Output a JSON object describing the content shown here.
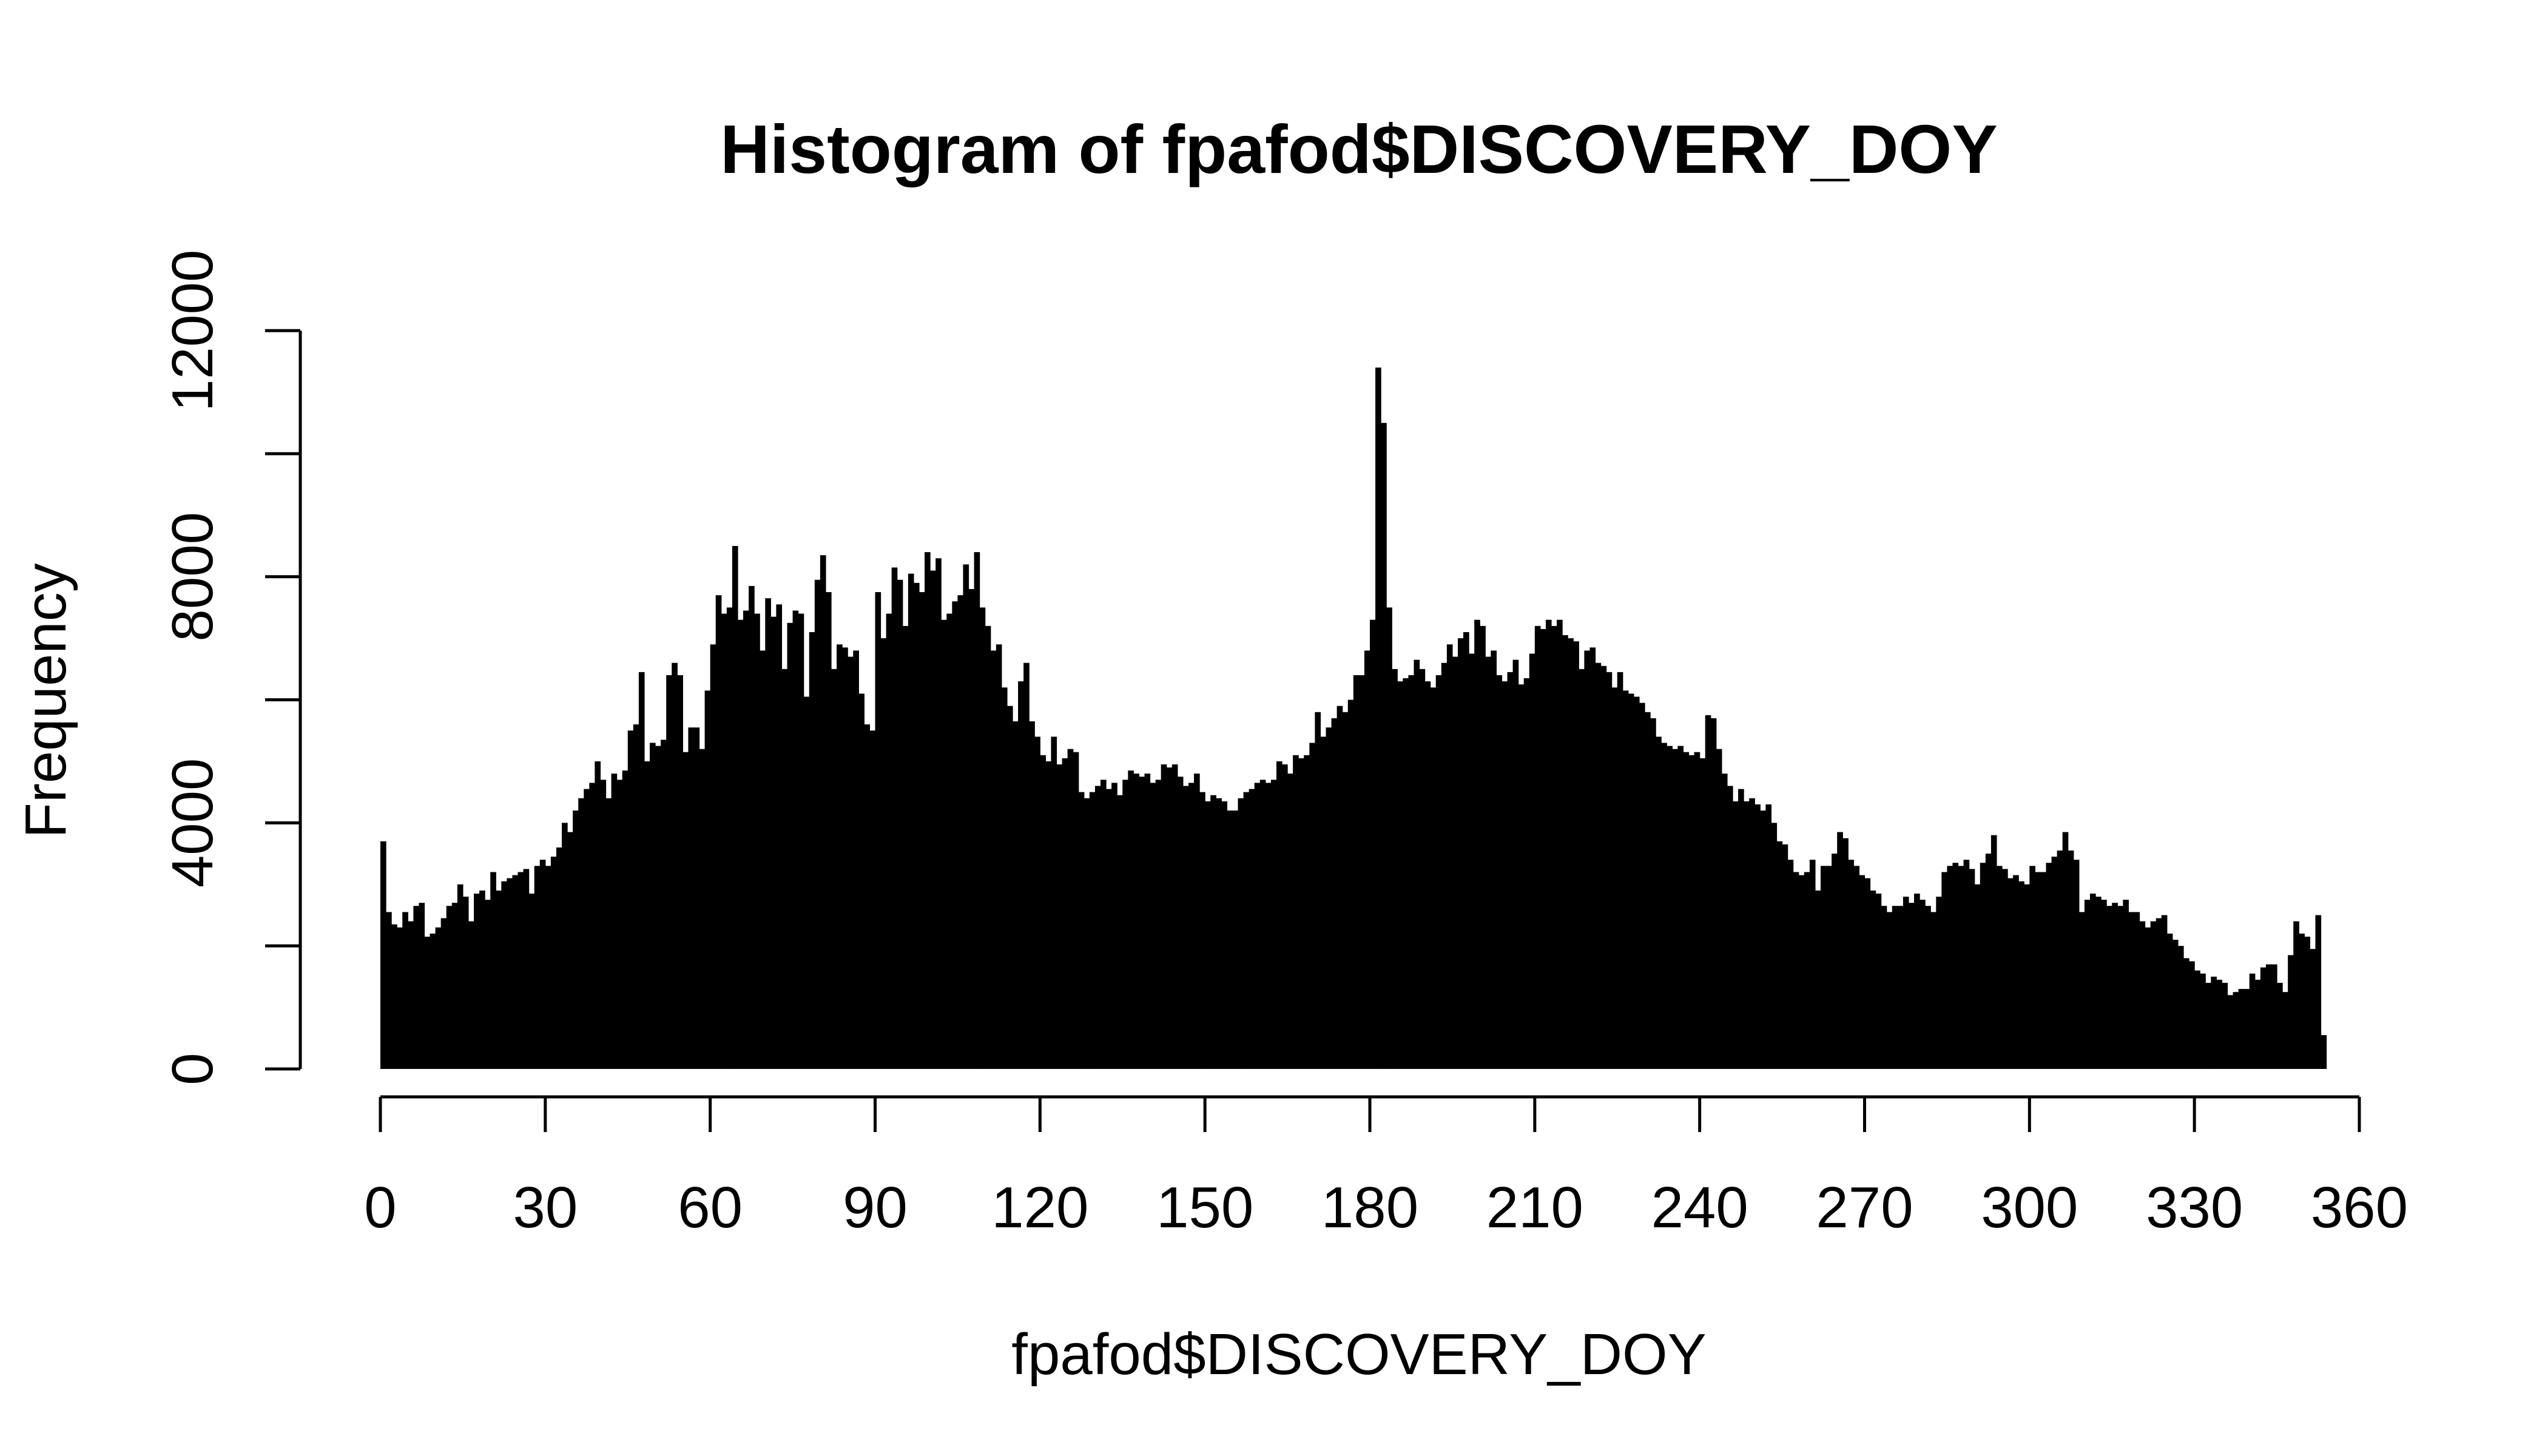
{
  "chart_data": {
    "type": "bar",
    "title": "Histogram of fpafod$DISCOVERY_DOY",
    "xlabel": "fpafod$DISCOVERY_DOY",
    "ylabel": "Frequency",
    "xlim": [
      0,
      366
    ],
    "ylim": [
      0,
      12000
    ],
    "x_ticks": [
      0,
      30,
      60,
      90,
      120,
      150,
      180,
      210,
      240,
      270,
      300,
      330,
      360
    ],
    "y_ticks": [
      0,
      4000,
      8000,
      12000
    ],
    "bin_start": 0,
    "bin_width": 1,
    "bar_color": "#000000",
    "grid": false,
    "legend": "none",
    "values": [
      3700,
      2550,
      2350,
      2300,
      2550,
      2400,
      2650,
      2700,
      2150,
      2200,
      2300,
      2450,
      2650,
      2700,
      3000,
      2800,
      2400,
      2850,
      2900,
      2750,
      3200,
      2900,
      3050,
      3100,
      3150,
      3200,
      3250,
      2850,
      3300,
      3400,
      3300,
      3450,
      3600,
      4000,
      3850,
      4200,
      4400,
      4550,
      4650,
      5000,
      4700,
      4400,
      4800,
      4700,
      4850,
      5500,
      5600,
      6450,
      5000,
      5300,
      5250,
      5350,
      6400,
      6600,
      6400,
      5150,
      5550,
      5550,
      5200,
      6150,
      6900,
      7700,
      7400,
      7500,
      8500,
      7300,
      7450,
      7850,
      7400,
      6800,
      7650,
      7350,
      7550,
      6500,
      7250,
      7450,
      7400,
      6050,
      7100,
      7950,
      8350,
      7750,
      6500,
      6900,
      6850,
      6700,
      6800,
      6100,
      5600,
      5500,
      7750,
      7000,
      7400,
      8150,
      7950,
      7200,
      8050,
      7900,
      7750,
      8400,
      8100,
      8300,
      7300,
      7400,
      7600,
      7700,
      8200,
      7800,
      8400,
      7500,
      7200,
      6800,
      6900,
      6200,
      5900,
      5650,
      6300,
      6600,
      5650,
      5400,
      5100,
      5000,
      5400,
      4950,
      5050,
      5200,
      5150,
      4500,
      4400,
      4500,
      4600,
      4700,
      4550,
      4650,
      4450,
      4700,
      4850,
      4800,
      4750,
      4800,
      4650,
      4700,
      4950,
      4900,
      4950,
      4750,
      4600,
      4650,
      4800,
      4500,
      4350,
      4450,
      4400,
      4350,
      4200,
      4200,
      4400,
      4500,
      4550,
      4650,
      4700,
      4650,
      4700,
      5000,
      4950,
      4800,
      5100,
      5050,
      5100,
      5300,
      5800,
      5400,
      5550,
      5700,
      5900,
      5800,
      6000,
      6400,
      6400,
      6800,
      7300,
      11400,
      10500,
      7500,
      6500,
      6300,
      6350,
      6400,
      6650,
      6500,
      6300,
      6200,
      6400,
      6600,
      6900,
      6700,
      7000,
      7100,
      6750,
      7300,
      7200,
      6700,
      6800,
      6400,
      6300,
      6450,
      6650,
      6250,
      6350,
      6750,
      7200,
      7150,
      7300,
      7200,
      7300,
      7050,
      7000,
      6950,
      6500,
      6800,
      6850,
      6600,
      6550,
      6450,
      6200,
      6450,
      6150,
      6100,
      6050,
      5950,
      5800,
      5700,
      5400,
      5300,
      5250,
      5200,
      5250,
      5150,
      5100,
      5150,
      5050,
      5750,
      5700,
      5200,
      4800,
      4600,
      4350,
      4550,
      4350,
      4400,
      4300,
      4200,
      4300,
      4000,
      3700,
      3650,
      3400,
      3200,
      3150,
      3200,
      3400,
      2900,
      3300,
      3300,
      3500,
      3850,
      3750,
      3400,
      3300,
      3150,
      3100,
      2900,
      2850,
      2650,
      2550,
      2650,
      2650,
      2800,
      2700,
      2850,
      2750,
      2650,
      2550,
      2800,
      3200,
      3300,
      3350,
      3300,
      3400,
      3250,
      3000,
      3350,
      3500,
      3800,
      3300,
      3250,
      3100,
      3150,
      3050,
      3000,
      3300,
      3200,
      3200,
      3350,
      3450,
      3550,
      3850,
      3550,
      3400,
      2550,
      2750,
      2850,
      2800,
      2750,
      2650,
      2700,
      2650,
      2750,
      2550,
      2550,
      2400,
      2300,
      2400,
      2450,
      2500,
      2200,
      2100,
      2000,
      1800,
      1750,
      1600,
      1550,
      1400,
      1500,
      1450,
      1400,
      1200,
      1250,
      1300,
      1300,
      1550,
      1450,
      1650,
      1700,
      1700,
      1400,
      1250,
      1850,
      2400,
      2200,
      2150,
      1950,
      2500,
      550
    ]
  }
}
